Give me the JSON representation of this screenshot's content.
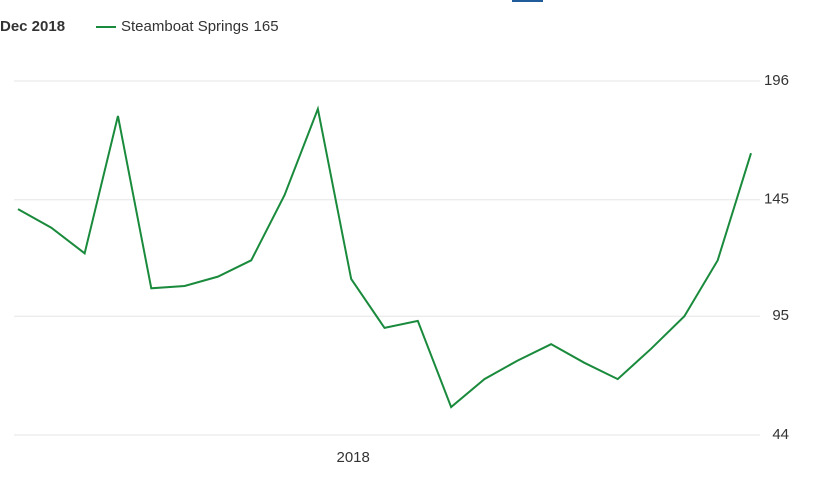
{
  "chart_data": {
    "type": "line",
    "period": "Dec 2018",
    "categories": [
      null,
      null,
      null,
      null,
      null,
      null,
      null,
      null,
      null,
      null,
      "2018",
      null,
      null,
      null,
      null,
      null,
      null,
      null,
      null,
      null,
      null,
      null,
      null
    ],
    "series": [
      {
        "name": "Steamboat Springs",
        "color": "#1a8a3c",
        "values": [
          141,
          133,
          122,
          181,
          107,
          108,
          112,
          119,
          147,
          184,
          111,
          90,
          93,
          56,
          68,
          76,
          83,
          75,
          68,
          81,
          95,
          119,
          165
        ]
      }
    ],
    "ylim": [
      44,
      196
    ],
    "yticks": [
      44,
      95,
      145,
      196
    ],
    "grid": true
  }
}
